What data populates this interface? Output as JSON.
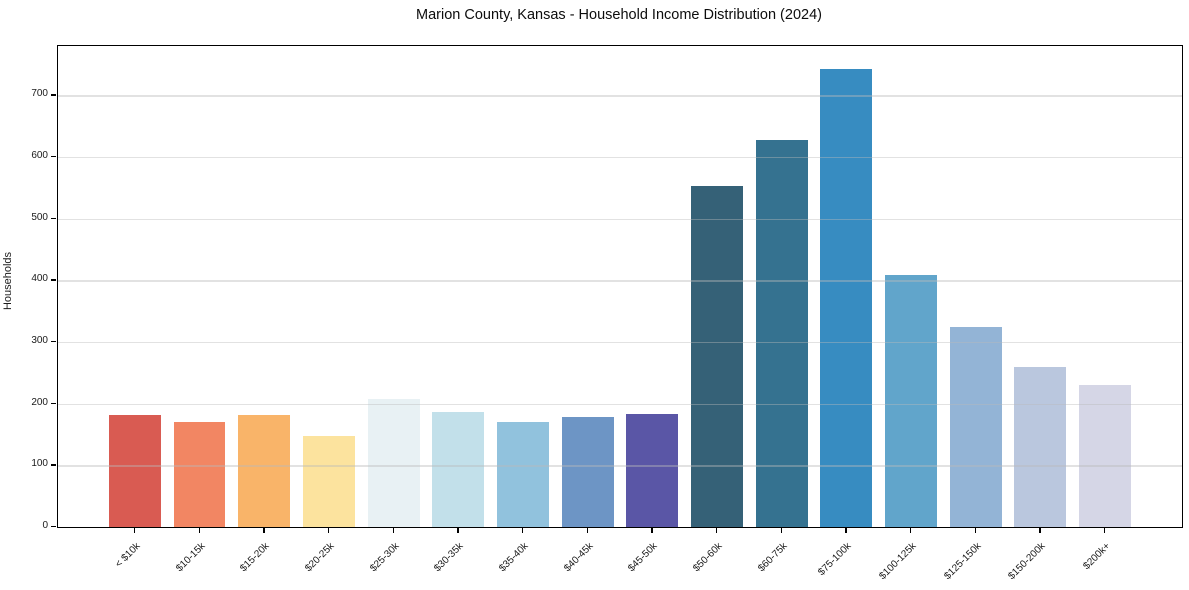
{
  "chart_data": {
    "type": "bar",
    "title": "Marion County, Kansas - Household Income Distribution (2024)",
    "xlabel": "",
    "ylabel": "Households",
    "categories": [
      "< $10k",
      "$10-15k",
      "$15-20k",
      "$20-25k",
      "$25-30k",
      "$30-35k",
      "$35-40k",
      "$40-45k",
      "$45-50k",
      "$50-60k",
      "$60-75k",
      "$75-100k",
      "$100-125k",
      "$125-150k",
      "$150-200k",
      "$200k+"
    ],
    "values": [
      182,
      170,
      182,
      148,
      207,
      186,
      170,
      178,
      183,
      553,
      628,
      743,
      408,
      325,
      259,
      230
    ],
    "bar_colors": [
      "#d95b52",
      "#f28663",
      "#f9b469",
      "#fce39e",
      "#e8f1f4",
      "#c2e0ea",
      "#91c2dd",
      "#6d95c5",
      "#5a56a6",
      "#356177",
      "#357290",
      "#378cc1",
      "#61a5cb",
      "#93b4d6",
      "#bac7de",
      "#d5d6e6"
    ],
    "yticks": [
      0,
      100,
      200,
      300,
      400,
      500,
      600,
      700
    ],
    "ylim": [
      0,
      780
    ],
    "grid": "horizontal-only",
    "legend": "none",
    "background": "#ffffff",
    "text_color": "#1a1a1a",
    "spine_color": "#000000",
    "grid_color": "#e0e0e0"
  }
}
